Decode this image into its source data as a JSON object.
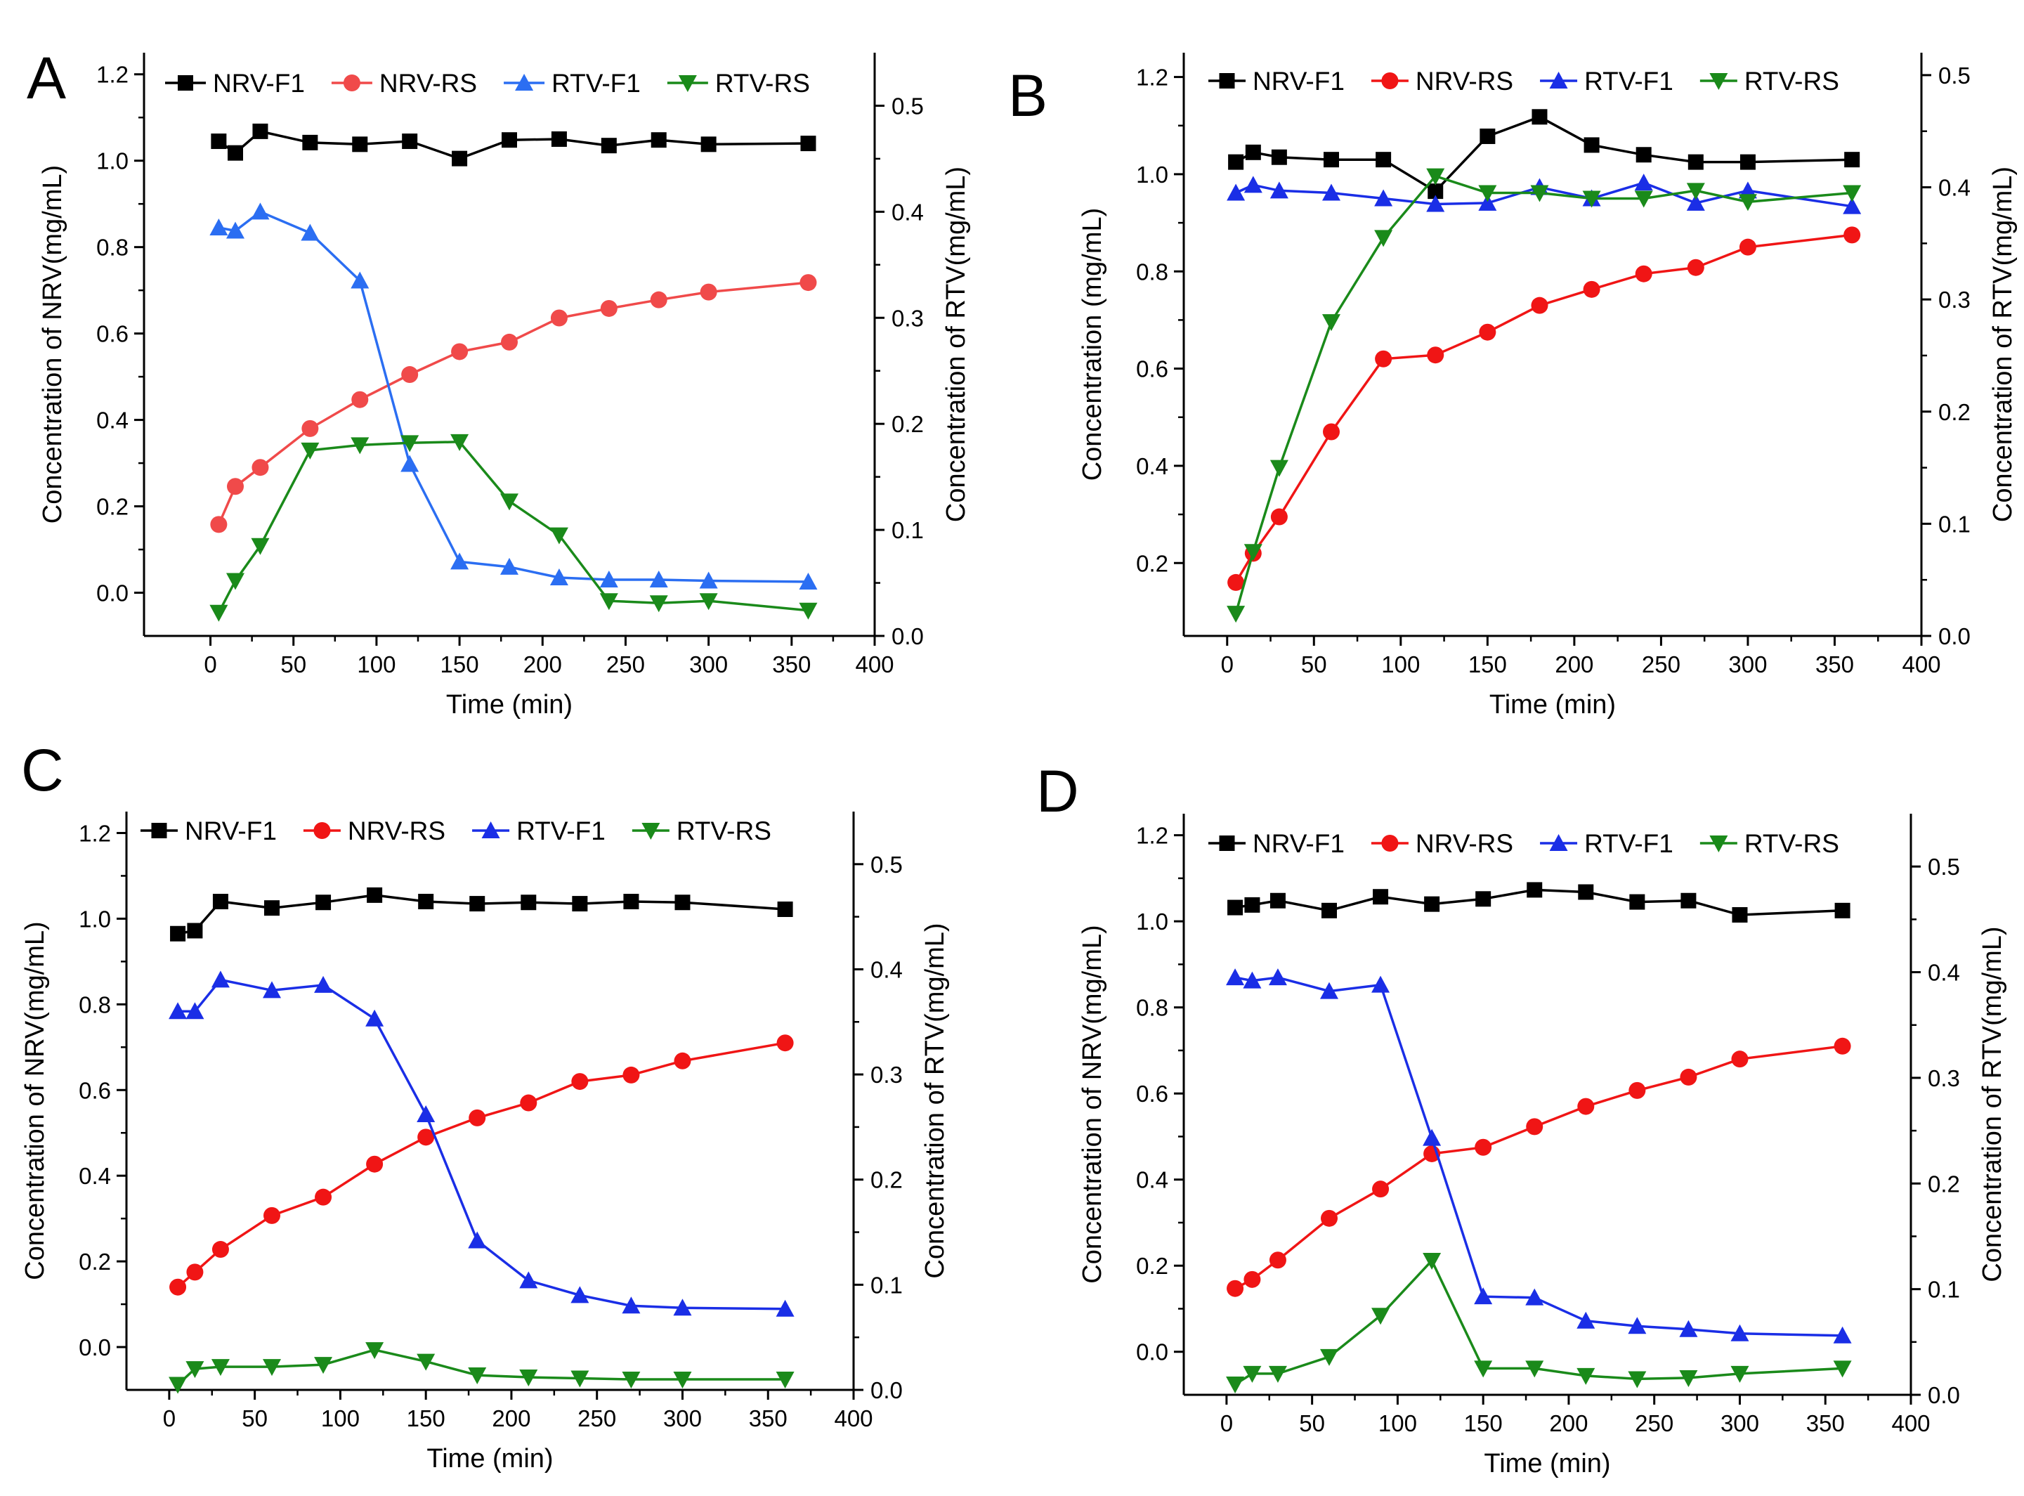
{
  "figure": {
    "panels": [
      "A",
      "B",
      "C",
      "D"
    ]
  },
  "chart_data": [
    {
      "panel": "A",
      "type": "line",
      "xlabel": "Time (min)",
      "ylabel_left": "Concentration of NRV(mg/mL)",
      "ylabel_right": "Concentration of RTV(mg/mL)",
      "xlim": [
        -40,
        400
      ],
      "ylim_left": [
        -0.1,
        1.25
      ],
      "ylim_right": [
        0.0,
        0.55
      ],
      "xticks": [
        0,
        50,
        100,
        150,
        200,
        250,
        300,
        350,
        400
      ],
      "yticks_left": [
        0.0,
        0.2,
        0.4,
        0.6,
        0.8,
        1.0,
        1.2
      ],
      "yticks_right": [
        0.0,
        0.1,
        0.2,
        0.3,
        0.4,
        0.5
      ],
      "x": [
        5,
        15,
        30,
        60,
        90,
        120,
        150,
        180,
        210,
        240,
        270,
        300,
        360
      ],
      "series": [
        {
          "name": "NRV-F1",
          "axis": "left",
          "color": "#000000",
          "marker": "square",
          "values": [
            1.045,
            1.018,
            1.068,
            1.042,
            1.038,
            1.045,
            1.005,
            1.048,
            1.05,
            1.035,
            1.048,
            1.038,
            1.04
          ]
        },
        {
          "name": "NRV-RS",
          "axis": "left",
          "color": "#f04a4a",
          "marker": "circle",
          "values": [
            0.158,
            0.246,
            0.29,
            0.38,
            0.447,
            0.505,
            0.558,
            0.58,
            0.636,
            0.658,
            0.678,
            0.696,
            0.718
          ]
        },
        {
          "name": "RTV-F1",
          "axis": "right",
          "color": "#2b6ef2",
          "marker": "triangle-up",
          "values": [
            0.385,
            0.382,
            0.4,
            0.38,
            0.335,
            0.162,
            0.07,
            0.065,
            0.055,
            0.053,
            0.053,
            0.052,
            0.051
          ]
        },
        {
          "name": "RTV-RS",
          "axis": "right",
          "color": "#1a8a1a",
          "marker": "triangle-down",
          "values": [
            0.022,
            0.052,
            0.085,
            0.175,
            0.18,
            0.182,
            0.183,
            0.127,
            0.095,
            0.033,
            0.031,
            0.033,
            0.024
          ]
        }
      ]
    },
    {
      "panel": "B",
      "type": "line",
      "xlabel": "Time (min)",
      "ylabel_left": "Concentration (mg/mL)",
      "ylabel_right": "Concentration of RTV(mg/mL)",
      "xlim": [
        -25,
        400
      ],
      "ylim_left": [
        0.05,
        1.25
      ],
      "ylim_right": [
        0.0,
        0.52
      ],
      "xticks": [
        0,
        50,
        100,
        150,
        200,
        250,
        300,
        350,
        400
      ],
      "yticks_left": [
        0.2,
        0.4,
        0.6,
        0.8,
        1.0,
        1.2
      ],
      "yticks_right": [
        0.0,
        0.1,
        0.2,
        0.3,
        0.4,
        0.5
      ],
      "x": [
        5,
        15,
        30,
        60,
        90,
        120,
        150,
        180,
        210,
        240,
        270,
        300,
        360
      ],
      "series": [
        {
          "name": "NRV-F1",
          "axis": "left",
          "color": "#000000",
          "marker": "square",
          "values": [
            1.025,
            1.045,
            1.035,
            1.03,
            1.03,
            0.965,
            1.078,
            1.118,
            1.06,
            1.04,
            1.025,
            1.025,
            1.03
          ]
        },
        {
          "name": "NRV-RS",
          "axis": "left",
          "color": "#f01515",
          "marker": "circle",
          "values": [
            0.16,
            0.22,
            0.295,
            0.47,
            0.62,
            0.628,
            0.675,
            0.73,
            0.763,
            0.795,
            0.808,
            0.85,
            0.875
          ]
        },
        {
          "name": "RTV-F1",
          "axis": "right",
          "color": "#1a2ee6",
          "marker": "triangle-up",
          "values": [
            0.395,
            0.402,
            0.397,
            0.395,
            0.39,
            0.385,
            0.386,
            0.4,
            0.39,
            0.404,
            0.386,
            0.397,
            0.383
          ]
        },
        {
          "name": "RTV-RS",
          "axis": "right",
          "color": "#1a8a1a",
          "marker": "triangle-down",
          "values": [
            0.02,
            0.075,
            0.15,
            0.28,
            0.355,
            0.41,
            0.395,
            0.395,
            0.39,
            0.39,
            0.397,
            0.387,
            0.395
          ]
        }
      ]
    },
    {
      "panel": "C",
      "type": "line",
      "xlabel": "Time (min)",
      "ylabel_left": "Concentration of NRV(mg/mL)",
      "ylabel_right": "Concentration of RTV(mg/mL)",
      "xlim": [
        -25,
        400
      ],
      "ylim_left": [
        -0.1,
        1.25
      ],
      "ylim_right": [
        0.0,
        0.55
      ],
      "xticks": [
        0,
        50,
        100,
        150,
        200,
        250,
        300,
        350,
        400
      ],
      "yticks_left": [
        0.0,
        0.2,
        0.4,
        0.6,
        0.8,
        1.0,
        1.2
      ],
      "yticks_right": [
        0.0,
        0.1,
        0.2,
        0.3,
        0.4,
        0.5
      ],
      "x": [
        5,
        15,
        30,
        60,
        90,
        120,
        150,
        180,
        210,
        240,
        270,
        300,
        360
      ],
      "series": [
        {
          "name": "NRV-F1",
          "axis": "left",
          "color": "#000000",
          "marker": "square",
          "values": [
            0.965,
            0.972,
            1.04,
            1.025,
            1.038,
            1.055,
            1.04,
            1.035,
            1.038,
            1.035,
            1.04,
            1.038,
            1.022
          ]
        },
        {
          "name": "NRV-RS",
          "axis": "left",
          "color": "#f01515",
          "marker": "circle",
          "values": [
            0.14,
            0.175,
            0.228,
            0.307,
            0.35,
            0.427,
            0.49,
            0.535,
            0.57,
            0.62,
            0.635,
            0.668,
            0.71
          ]
        },
        {
          "name": "RTV-F1",
          "axis": "right",
          "color": "#1a2ee6",
          "marker": "triangle-up",
          "values": [
            0.36,
            0.36,
            0.39,
            0.38,
            0.385,
            0.353,
            0.262,
            0.142,
            0.104,
            0.09,
            0.08,
            0.078,
            0.077
          ]
        },
        {
          "name": "RTV-RS",
          "axis": "right",
          "color": "#1a8a1a",
          "marker": "triangle-down",
          "values": [
            0.005,
            0.02,
            0.022,
            0.022,
            0.024,
            0.038,
            0.027,
            0.014,
            0.012,
            0.011,
            0.01,
            0.01,
            0.01
          ]
        }
      ]
    },
    {
      "panel": "D",
      "type": "line",
      "xlabel": "Time (min)",
      "ylabel_left": "Concentration of NRV(mg/mL)",
      "ylabel_right": "Concentration of RTV(mg/mL)",
      "xlim": [
        -25,
        400
      ],
      "ylim_left": [
        -0.1,
        1.25
      ],
      "ylim_right": [
        0.0,
        0.55
      ],
      "xticks": [
        0,
        50,
        100,
        150,
        200,
        250,
        300,
        350,
        400
      ],
      "yticks_left": [
        0.0,
        0.2,
        0.4,
        0.6,
        0.8,
        1.0,
        1.2
      ],
      "yticks_right": [
        0.0,
        0.1,
        0.2,
        0.3,
        0.4,
        0.5
      ],
      "x": [
        5,
        15,
        30,
        60,
        90,
        120,
        150,
        180,
        210,
        240,
        270,
        300,
        360
      ],
      "series": [
        {
          "name": "NRV-F1",
          "axis": "left",
          "color": "#000000",
          "marker": "square",
          "values": [
            1.032,
            1.038,
            1.048,
            1.025,
            1.057,
            1.04,
            1.052,
            1.073,
            1.068,
            1.045,
            1.048,
            1.015,
            1.025
          ]
        },
        {
          "name": "NRV-RS",
          "axis": "left",
          "color": "#f01515",
          "marker": "circle",
          "values": [
            0.147,
            0.168,
            0.213,
            0.31,
            0.378,
            0.46,
            0.475,
            0.523,
            0.57,
            0.607,
            0.638,
            0.68,
            0.71
          ]
        },
        {
          "name": "RTV-F1",
          "axis": "right",
          "color": "#1a2ee6",
          "marker": "triangle-up",
          "values": [
            0.395,
            0.392,
            0.395,
            0.382,
            0.388,
            0.243,
            0.093,
            0.092,
            0.07,
            0.065,
            0.062,
            0.058,
            0.056
          ]
        },
        {
          "name": "RTV-RS",
          "axis": "right",
          "color": "#1a8a1a",
          "marker": "triangle-down",
          "values": [
            0.01,
            0.02,
            0.02,
            0.036,
            0.075,
            0.127,
            0.025,
            0.025,
            0.018,
            0.015,
            0.016,
            0.02,
            0.025
          ]
        }
      ]
    }
  ]
}
